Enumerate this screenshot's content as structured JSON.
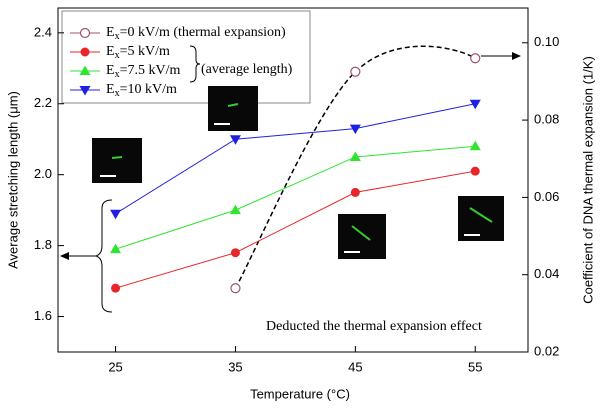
{
  "chart_data": {
    "type": "line",
    "x_label": "Temperature (°C)",
    "y_label": "Average stretching length (μm)",
    "y2_label": "Coefficient of DNA thermal expansion (1/K)",
    "annotations": [
      "(average length)",
      "Deducted the thermal expansion effect"
    ],
    "x": [
      25,
      35,
      45,
      55
    ],
    "xlim": [
      20.2,
      59.4
    ],
    "xticks": [
      25,
      35,
      45,
      55
    ],
    "ylim": [
      1.5,
      2.47
    ],
    "yticks": [
      1.6,
      1.8,
      {
        "value": 2,
        "label": "2.0"
      },
      2.2,
      2.4
    ],
    "y2lim": [
      0.02,
      0.109
    ],
    "y2ticks": [
      0.02,
      0.04,
      0.06,
      0.08,
      {
        "value": 0.1,
        "label": "0.10"
      }
    ],
    "legend": "top-left",
    "series": [
      {
        "name": "Ex=0 kV/m (thermal expansion)",
        "color": "#a0506e",
        "marker": "open-circle",
        "axis": "y2",
        "dashed": true,
        "values": [
          null,
          0.0365,
          0.0925,
          0.096
        ]
      },
      {
        "name": "Ex=5 kV/m",
        "color": "#e8262a",
        "marker": "circle",
        "values": [
          1.68,
          1.78,
          1.95,
          2.01
        ]
      },
      {
        "name": "Ex=7.5 kV/m",
        "color": "#2ee62e",
        "marker": "triangle-up",
        "values": [
          1.79,
          1.9,
          2.05,
          2.08
        ]
      },
      {
        "name": "Ex=10 kV/m",
        "color": "#2020e0",
        "marker": "triangle-down",
        "values": [
          1.89,
          2.1,
          2.13,
          2.2
        ]
      }
    ]
  }
}
